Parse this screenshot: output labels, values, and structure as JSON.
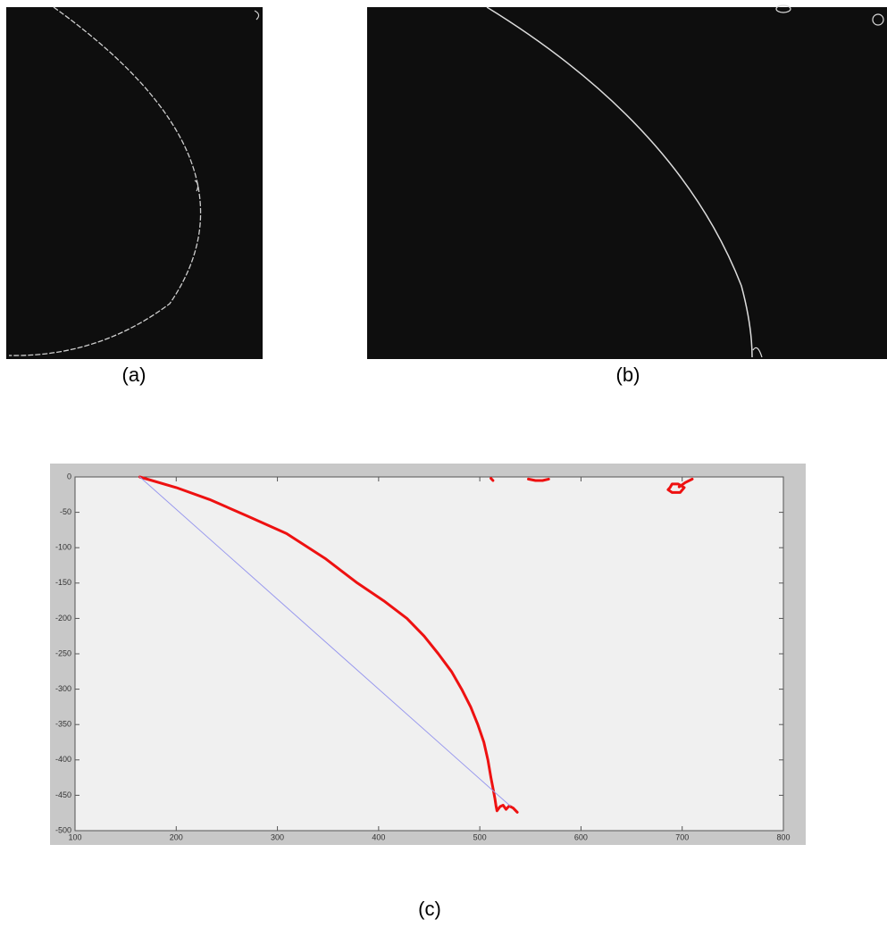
{
  "captions": [
    "(a)",
    "(b)",
    "(c)"
  ],
  "chart_data": {
    "type": "line",
    "xlim": [
      100,
      800
    ],
    "ylim": [
      -500,
      0
    ],
    "xticks": [
      100,
      200,
      300,
      400,
      500,
      600,
      700,
      800
    ],
    "yticks": [
      0,
      -50,
      -100,
      -150,
      -200,
      -250,
      -300,
      -350,
      -400,
      -450,
      -500
    ],
    "series": [
      {
        "color": "#ee1111",
        "x": [
          164,
          200,
          233,
          270,
          309,
          347,
          379,
          405,
          428,
          445,
          459,
          472,
          482,
          491,
          498,
          504,
          508,
          511,
          513,
          515,
          516,
          517,
          520,
          523,
          526,
          529,
          533,
          537,
          null,
          511,
          513,
          null,
          548,
          555,
          562,
          568,
          null,
          688,
          690,
          696,
          702,
          698,
          690,
          686,
          688,
          null,
          697,
          703,
          710
        ],
        "values": [
          0,
          -15,
          -32,
          -55,
          -80,
          -115,
          -150,
          -175,
          -200,
          -225,
          -250,
          -275,
          -300,
          -325,
          -350,
          -375,
          -400,
          -425,
          -440,
          -455,
          -465,
          -472,
          -466,
          -464,
          -470,
          -465,
          -468,
          -474,
          null,
          -2,
          -5,
          null,
          -3,
          -5,
          -5,
          -3,
          null,
          -15,
          -10,
          -10,
          -15,
          -22,
          -22,
          -18,
          -15,
          null,
          -14,
          -8,
          -3
        ]
      },
      {
        "color": "#9999ee",
        "x": [
          164,
          530
        ],
        "values": [
          0,
          -465
        ]
      }
    ]
  }
}
